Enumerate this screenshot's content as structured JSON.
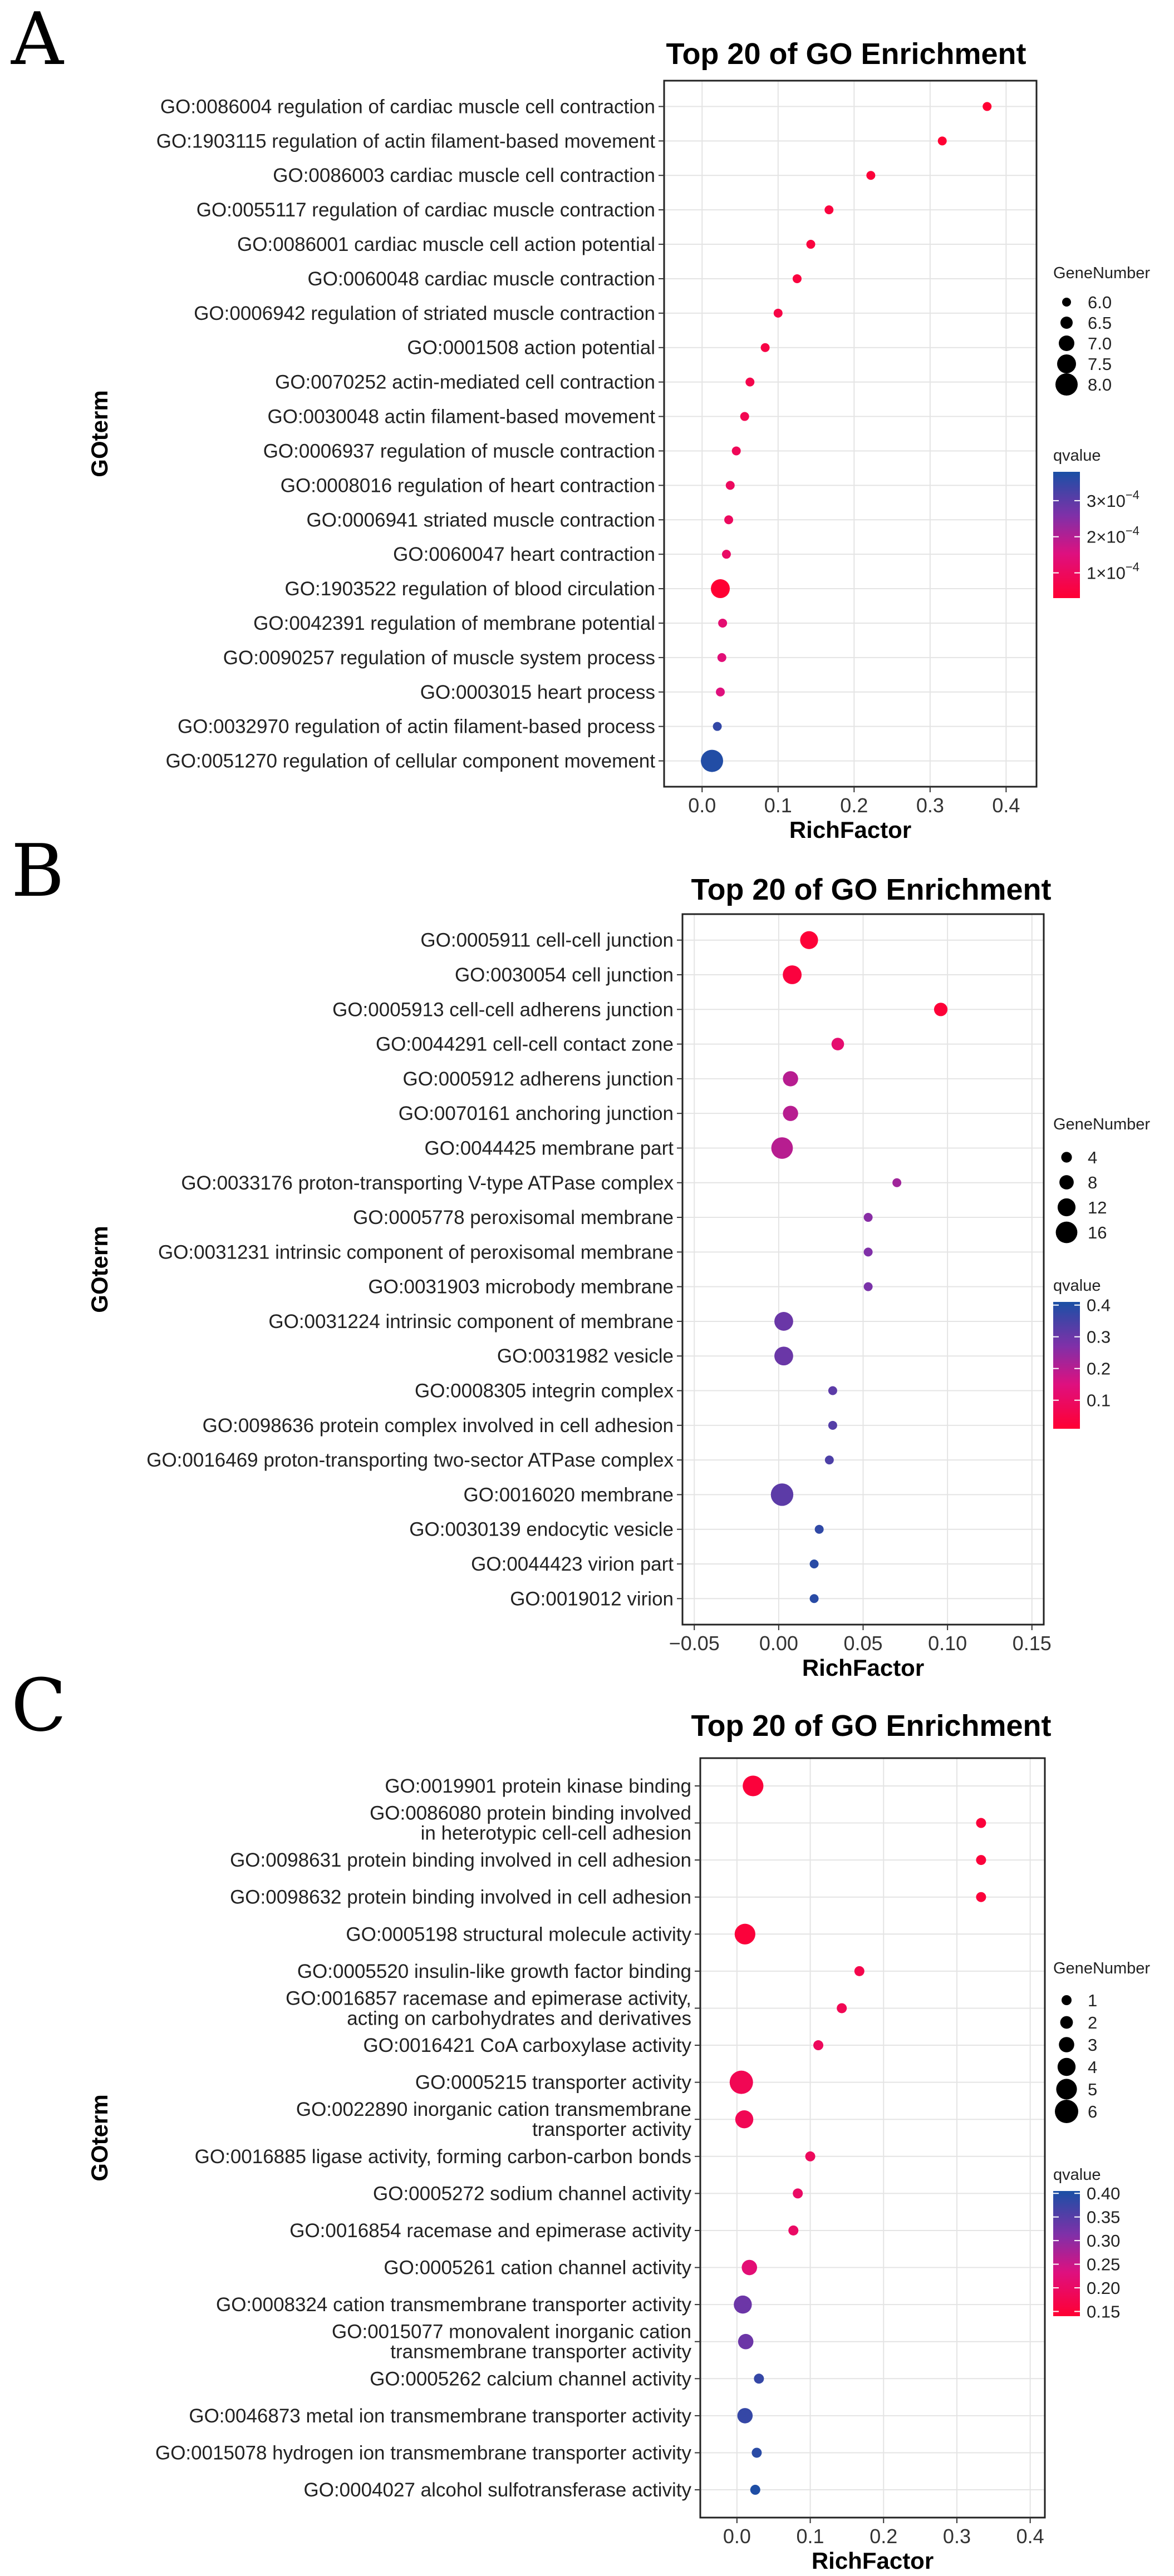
{
  "chart_data": [
    {
      "type": "scatter",
      "panel": "A",
      "title": "Top 20 of GO Enrichment",
      "xlabel": "RichFactor",
      "ylabel": "GOterm",
      "xlim": [
        -0.05,
        0.44
      ],
      "xticks": [
        {
          "v": 0.0,
          "t": "0.0"
        },
        {
          "v": 0.1,
          "t": "0.1"
        },
        {
          "v": 0.2,
          "t": "0.2"
        },
        {
          "v": 0.3,
          "t": "0.3"
        },
        {
          "v": 0.4,
          "t": "0.4"
        }
      ],
      "grid": true,
      "size_legend": {
        "title": "GeneNumber",
        "sizes": [
          6.0,
          6.5,
          7.0,
          7.5,
          8.0
        ],
        "labels": [
          "6.0",
          "6.5",
          "7.0",
          "7.5",
          "8.0"
        ],
        "min": 6.0,
        "max": 8.0
      },
      "color_legend": {
        "title": "qvalue",
        "min": 3e-05,
        "max": 0.00038,
        "ticks": [
          {
            "v": 0.0003,
            "a": "3×10",
            "b": "−4"
          },
          {
            "v": 0.0002,
            "a": "2×10",
            "b": "−4"
          },
          {
            "v": 0.0001,
            "a": "1×10",
            "b": "−4"
          }
        ]
      },
      "terms": [
        {
          "lines": [
            "GO:0086004 regulation of cardiac muscle cell contraction"
          ],
          "x": 0.375,
          "size": 6.0,
          "q": 3e-05
        },
        {
          "lines": [
            "GO:1903115 regulation of actin filament-based movement"
          ],
          "x": 0.316,
          "size": 6.0,
          "q": 3e-05
        },
        {
          "lines": [
            "GO:0086003 cardiac muscle cell contraction"
          ],
          "x": 0.222,
          "size": 6.0,
          "q": 4e-05
        },
        {
          "lines": [
            "GO:0055117 regulation of cardiac muscle contraction"
          ],
          "x": 0.167,
          "size": 6.0,
          "q": 5e-05
        },
        {
          "lines": [
            "GO:0086001 cardiac muscle cell action potential"
          ],
          "x": 0.143,
          "size": 6.0,
          "q": 5e-05
        },
        {
          "lines": [
            "GO:0060048 cardiac muscle contraction"
          ],
          "x": 0.125,
          "size": 6.0,
          "q": 5e-05
        },
        {
          "lines": [
            "GO:0006942 regulation of striated muscle contraction"
          ],
          "x": 0.1,
          "size": 6.0,
          "q": 6e-05
        },
        {
          "lines": [
            "GO:0001508 action potential"
          ],
          "x": 0.083,
          "size": 6.0,
          "q": 6e-05
        },
        {
          "lines": [
            "GO:0070252 actin-mediated cell contraction"
          ],
          "x": 0.063,
          "size": 6.0,
          "q": 7e-05
        },
        {
          "lines": [
            "GO:0030048 actin filament-based movement"
          ],
          "x": 0.056,
          "size": 6.0,
          "q": 8e-05
        },
        {
          "lines": [
            "GO:0006937 regulation of muscle contraction"
          ],
          "x": 0.045,
          "size": 6.0,
          "q": 9e-05
        },
        {
          "lines": [
            "GO:0008016 regulation of heart contraction"
          ],
          "x": 0.037,
          "size": 6.0,
          "q": 0.0001
        },
        {
          "lines": [
            "GO:0006941 striated muscle contraction"
          ],
          "x": 0.035,
          "size": 6.0,
          "q": 0.0001
        },
        {
          "lines": [
            "GO:0060047 heart contraction"
          ],
          "x": 0.032,
          "size": 6.0,
          "q": 0.00011
        },
        {
          "lines": [
            "GO:1903522 regulation of blood circulation"
          ],
          "x": 0.024,
          "size": 7.5,
          "q": 3e-05
        },
        {
          "lines": [
            "GO:0042391 regulation of membrane potential"
          ],
          "x": 0.027,
          "size": 6.0,
          "q": 0.00013
        },
        {
          "lines": [
            "GO:0090257 regulation of muscle system process"
          ],
          "x": 0.026,
          "size": 6.0,
          "q": 0.00014
        },
        {
          "lines": [
            "GO:0003015 heart process"
          ],
          "x": 0.024,
          "size": 6.0,
          "q": 0.00015
        },
        {
          "lines": [
            "GO:0032970 regulation of actin filament-based process"
          ],
          "x": 0.02,
          "size": 6.0,
          "q": 0.00035
        },
        {
          "lines": [
            "GO:0051270 regulation of cellular component movement"
          ],
          "x": 0.013,
          "size": 8.0,
          "q": 0.00037
        }
      ]
    },
    {
      "type": "scatter",
      "panel": "B",
      "title": "Top 20 of GO Enrichment",
      "xlabel": "RichFactor",
      "ylabel": "GOterm",
      "xlim": [
        -0.057,
        0.157
      ],
      "xticks": [
        {
          "v": -0.05,
          "t": "−0.05"
        },
        {
          "v": 0.0,
          "t": "0.00"
        },
        {
          "v": 0.05,
          "t": "0.05"
        },
        {
          "v": 0.1,
          "t": "0.10"
        },
        {
          "v": 0.15,
          "t": "0.15"
        }
      ],
      "grid": true,
      "size_legend": {
        "title": "GeneNumber",
        "sizes": [
          4,
          8,
          12,
          16
        ],
        "labels": [
          "4",
          "8",
          "12",
          "16"
        ],
        "min": 2,
        "max": 18
      },
      "color_legend": {
        "title": "qvalue",
        "min": 0.01,
        "max": 0.41,
        "ticks": [
          {
            "v": 0.4,
            "a": "0.4",
            "b": ""
          },
          {
            "v": 0.3,
            "a": "0.3",
            "b": ""
          },
          {
            "v": 0.2,
            "a": "0.2",
            "b": ""
          },
          {
            "v": 0.1,
            "a": "0.1",
            "b": ""
          }
        ]
      },
      "terms": [
        {
          "lines": [
            "GO:0005911 cell-cell junction"
          ],
          "x": 0.018,
          "size": 12,
          "q": 0.02
        },
        {
          "lines": [
            "GO:0030054 cell junction"
          ],
          "x": 0.008,
          "size": 13,
          "q": 0.03
        },
        {
          "lines": [
            "GO:0005913 cell-cell adherens junction"
          ],
          "x": 0.096,
          "size": 7,
          "q": 0.02
        },
        {
          "lines": [
            "GO:0044291 cell-cell contact zone"
          ],
          "x": 0.035,
          "size": 6,
          "q": 0.12
        },
        {
          "lines": [
            "GO:0005912 adherens junction"
          ],
          "x": 0.007,
          "size": 9,
          "q": 0.2
        },
        {
          "lines": [
            "GO:0070161 anchoring junction"
          ],
          "x": 0.007,
          "size": 9,
          "q": 0.2
        },
        {
          "lines": [
            "GO:0044425 membrane part"
          ],
          "x": 0.002,
          "size": 16,
          "q": 0.2
        },
        {
          "lines": [
            "GO:0033176 proton-transporting V-type ATPase complex"
          ],
          "x": 0.07,
          "size": 2,
          "q": 0.23
        },
        {
          "lines": [
            "GO:0005778 peroxisomal membrane"
          ],
          "x": 0.053,
          "size": 2,
          "q": 0.26
        },
        {
          "lines": [
            "GO:0031231 intrinsic component of peroxisomal membrane"
          ],
          "x": 0.053,
          "size": 2,
          "q": 0.27
        },
        {
          "lines": [
            "GO:0031903 microbody membrane"
          ],
          "x": 0.053,
          "size": 2,
          "q": 0.28
        },
        {
          "lines": [
            "GO:0031224 intrinsic component of membrane"
          ],
          "x": 0.003,
          "size": 13,
          "q": 0.3
        },
        {
          "lines": [
            "GO:0031982 vesicle"
          ],
          "x": 0.003,
          "size": 13,
          "q": 0.3
        },
        {
          "lines": [
            "GO:0008305 integrin complex"
          ],
          "x": 0.032,
          "size": 2,
          "q": 0.32
        },
        {
          "lines": [
            "GO:0098636 protein complex involved in cell adhesion"
          ],
          "x": 0.032,
          "size": 2,
          "q": 0.33
        },
        {
          "lines": [
            "GO:0016469 proton-transporting two-sector ATPase complex"
          ],
          "x": 0.03,
          "size": 2,
          "q": 0.34
        },
        {
          "lines": [
            "GO:0016020 membrane"
          ],
          "x": 0.002,
          "size": 17,
          "q": 0.32
        },
        {
          "lines": [
            "GO:0030139 endocytic vesicle"
          ],
          "x": 0.024,
          "size": 2,
          "q": 0.38
        },
        {
          "lines": [
            "GO:0044423 virion part"
          ],
          "x": 0.021,
          "size": 2,
          "q": 0.39
        },
        {
          "lines": [
            "GO:0019012 virion"
          ],
          "x": 0.021,
          "size": 2,
          "q": 0.39
        }
      ]
    },
    {
      "type": "scatter",
      "panel": "C",
      "title": "Top 20 of GO Enrichment",
      "xlabel": "RichFactor",
      "ylabel": "GOterm",
      "xlim": [
        -0.05,
        0.42
      ],
      "xticks": [
        {
          "v": 0.0,
          "t": "0.0"
        },
        {
          "v": 0.1,
          "t": "0.1"
        },
        {
          "v": 0.2,
          "t": "0.2"
        },
        {
          "v": 0.3,
          "t": "0.3"
        },
        {
          "v": 0.4,
          "t": "0.4"
        }
      ],
      "grid": true,
      "size_legend": {
        "title": "GeneNumber",
        "sizes": [
          1,
          2,
          3,
          4,
          5,
          6
        ],
        "labels": [
          "1",
          "2",
          "3",
          "4",
          "5",
          "6"
        ],
        "min": 1,
        "max": 6
      },
      "color_legend": {
        "title": "qvalue",
        "min": 0.14,
        "max": 0.405,
        "ticks": [
          {
            "v": 0.4,
            "a": "0.40",
            "b": ""
          },
          {
            "v": 0.35,
            "a": "0.35",
            "b": ""
          },
          {
            "v": 0.3,
            "a": "0.30",
            "b": ""
          },
          {
            "v": 0.25,
            "a": "0.25",
            "b": ""
          },
          {
            "v": 0.2,
            "a": "0.20",
            "b": ""
          },
          {
            "v": 0.15,
            "a": "0.15",
            "b": ""
          }
        ]
      },
      "terms": [
        {
          "lines": [
            "GO:0019901 protein kinase binding"
          ],
          "x": 0.022,
          "size": 5,
          "q": 0.15
        },
        {
          "lines": [
            "GO:0086080 protein binding involved",
            "in heterotypic cell-cell adhesion"
          ],
          "x": 0.333,
          "size": 1,
          "q": 0.15
        },
        {
          "lines": [
            "GO:0098631 protein binding involved in cell adhesion"
          ],
          "x": 0.333,
          "size": 1,
          "q": 0.15
        },
        {
          "lines": [
            "GO:0098632 protein binding involved in cell adhesion"
          ],
          "x": 0.333,
          "size": 1,
          "q": 0.15
        },
        {
          "lines": [
            "GO:0005198 structural molecule activity"
          ],
          "x": 0.011,
          "size": 5,
          "q": 0.15
        },
        {
          "lines": [
            "GO:0005520 insulin-like growth factor binding"
          ],
          "x": 0.167,
          "size": 1,
          "q": 0.17
        },
        {
          "lines": [
            "GO:0016857 racemase and epimerase activity,",
            "acting on carbohydrates and derivatives"
          ],
          "x": 0.143,
          "size": 1,
          "q": 0.18
        },
        {
          "lines": [
            "GO:0016421 CoA carboxylase activity"
          ],
          "x": 0.111,
          "size": 1,
          "q": 0.19
        },
        {
          "lines": [
            "GO:0005215 transporter activity"
          ],
          "x": 0.006,
          "size": 6,
          "q": 0.18
        },
        {
          "lines": [
            "GO:0022890 inorganic cation transmembrane",
            "transporter activity"
          ],
          "x": 0.01,
          "size": 4,
          "q": 0.18
        },
        {
          "lines": [
            "GO:0016885 ligase activity, forming carbon-carbon bonds"
          ],
          "x": 0.1,
          "size": 1,
          "q": 0.19
        },
        {
          "lines": [
            "GO:0005272 sodium channel activity"
          ],
          "x": 0.083,
          "size": 1,
          "q": 0.2
        },
        {
          "lines": [
            "GO:0016854 racemase and epimerase activity"
          ],
          "x": 0.077,
          "size": 1,
          "q": 0.2
        },
        {
          "lines": [
            "GO:0005261 cation channel activity"
          ],
          "x": 0.017,
          "size": 3,
          "q": 0.22
        },
        {
          "lines": [
            "GO:0008324 cation transmembrane transporter activity"
          ],
          "x": 0.008,
          "size": 4,
          "q": 0.33
        },
        {
          "lines": [
            "GO:0015077 monovalent inorganic cation",
            "transmembrane transporter activity"
          ],
          "x": 0.012,
          "size": 3,
          "q": 0.33
        },
        {
          "lines": [
            "GO:0005262 calcium channel activity"
          ],
          "x": 0.03,
          "size": 1,
          "q": 0.38
        },
        {
          "lines": [
            "GO:0046873 metal ion transmembrane transporter activity"
          ],
          "x": 0.011,
          "size": 3,
          "q": 0.38
        },
        {
          "lines": [
            "GO:0015078 hydrogen ion transmembrane transporter activity"
          ],
          "x": 0.027,
          "size": 1,
          "q": 0.39
        },
        {
          "lines": [
            "GO:0004027 alcohol sulfotransferase activity"
          ],
          "x": 0.025,
          "size": 1,
          "q": 0.4
        }
      ]
    }
  ]
}
